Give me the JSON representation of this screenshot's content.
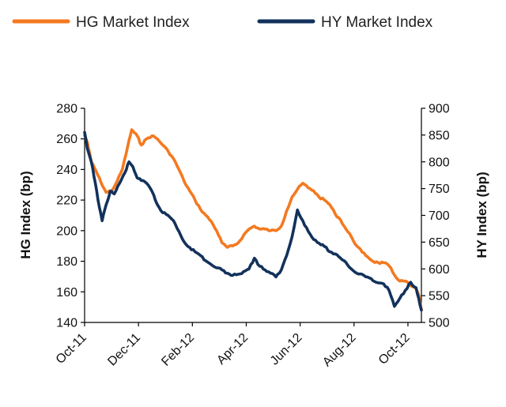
{
  "chart_data": {
    "type": "line",
    "title": "",
    "xlabel": "",
    "x_start": "Oct-11",
    "x_end": "Oct-12",
    "x_tick_labels": [
      "Oct-11",
      "Dec-11",
      "Feb-12",
      "Apr-12",
      "Jun-12",
      "Aug-12",
      "Oct-12"
    ],
    "y_left": {
      "label": "HG Index (bp)",
      "range": [
        140,
        280
      ],
      "ticks": [
        140,
        160,
        180,
        200,
        220,
        240,
        260,
        280
      ]
    },
    "y_right": {
      "label": "HY Index (bp)",
      "range": [
        500,
        900
      ],
      "ticks": [
        500,
        550,
        600,
        650,
        700,
        750,
        800,
        850,
        900
      ]
    },
    "legend_position": "top",
    "series": [
      {
        "name": "HG Market Index",
        "axis": "left",
        "color": "#F47920",
        "x_months": [
          0,
          0.1,
          0.25,
          0.45,
          0.6,
          0.8,
          1.0,
          1.2,
          1.4,
          1.6,
          1.75,
          1.85,
          1.95,
          2.1,
          2.3,
          2.5,
          2.7,
          2.9,
          3.1,
          3.3,
          3.5,
          3.7,
          3.9,
          4.1,
          4.3,
          4.5,
          4.7,
          4.9,
          5.1,
          5.3,
          5.5,
          5.7,
          5.9,
          6.1,
          6.3,
          6.5,
          6.7,
          6.9,
          7.1,
          7.3,
          7.5,
          7.7,
          7.9,
          8.1,
          8.3,
          8.5,
          8.7,
          8.9,
          9.1,
          9.3,
          9.5,
          9.7,
          9.9,
          10.1,
          10.3,
          10.5,
          10.7,
          10.9,
          11.1,
          11.3,
          11.5,
          11.7,
          11.9,
          12.1,
          12.3,
          12.4,
          12.5
        ],
        "values": [
          262,
          258,
          245,
          238,
          232,
          225,
          226,
          232,
          240,
          255,
          266,
          264,
          262,
          256,
          260,
          262,
          260,
          256,
          252,
          247,
          240,
          232,
          226,
          220,
          214,
          210,
          206,
          200,
          192,
          189,
          190,
          192,
          197,
          201,
          203,
          201,
          201,
          200,
          200,
          203,
          213,
          222,
          227,
          231,
          228,
          226,
          222,
          220,
          217,
          211,
          207,
          201,
          196,
          190,
          186,
          183,
          180,
          179,
          179,
          177,
          171,
          167,
          167,
          164,
          162,
          158,
          148
        ]
      },
      {
        "name": "HY Market Index",
        "axis": "right",
        "color": "#12325C",
        "x_months": [
          0,
          0.1,
          0.25,
          0.4,
          0.55,
          0.65,
          0.8,
          0.95,
          1.1,
          1.3,
          1.5,
          1.65,
          1.8,
          1.95,
          2.1,
          2.3,
          2.5,
          2.7,
          2.9,
          3.1,
          3.3,
          3.5,
          3.7,
          3.9,
          4.1,
          4.3,
          4.5,
          4.7,
          4.9,
          5.1,
          5.3,
          5.5,
          5.7,
          5.9,
          6.1,
          6.3,
          6.5,
          6.7,
          6.9,
          7.1,
          7.3,
          7.5,
          7.7,
          7.9,
          8.1,
          8.3,
          8.5,
          8.7,
          8.9,
          9.1,
          9.3,
          9.5,
          9.7,
          9.9,
          10.1,
          10.3,
          10.5,
          10.7,
          10.9,
          11.1,
          11.3,
          11.5,
          11.7,
          11.9,
          12.1,
          12.3,
          12.4,
          12.5
        ],
        "values": [
          855,
          825,
          800,
          760,
          715,
          690,
          720,
          745,
          740,
          760,
          780,
          800,
          790,
          770,
          765,
          760,
          745,
          720,
          705,
          700,
          690,
          670,
          650,
          640,
          632,
          625,
          615,
          608,
          602,
          598,
          592,
          588,
          590,
          595,
          600,
          620,
          605,
          598,
          592,
          585,
          598,
          625,
          660,
          710,
          690,
          670,
          655,
          648,
          642,
          632,
          628,
          620,
          612,
          600,
          592,
          590,
          585,
          578,
          574,
          572,
          560,
          530,
          545,
          560,
          575,
          565,
          545,
          523
        ]
      }
    ]
  }
}
